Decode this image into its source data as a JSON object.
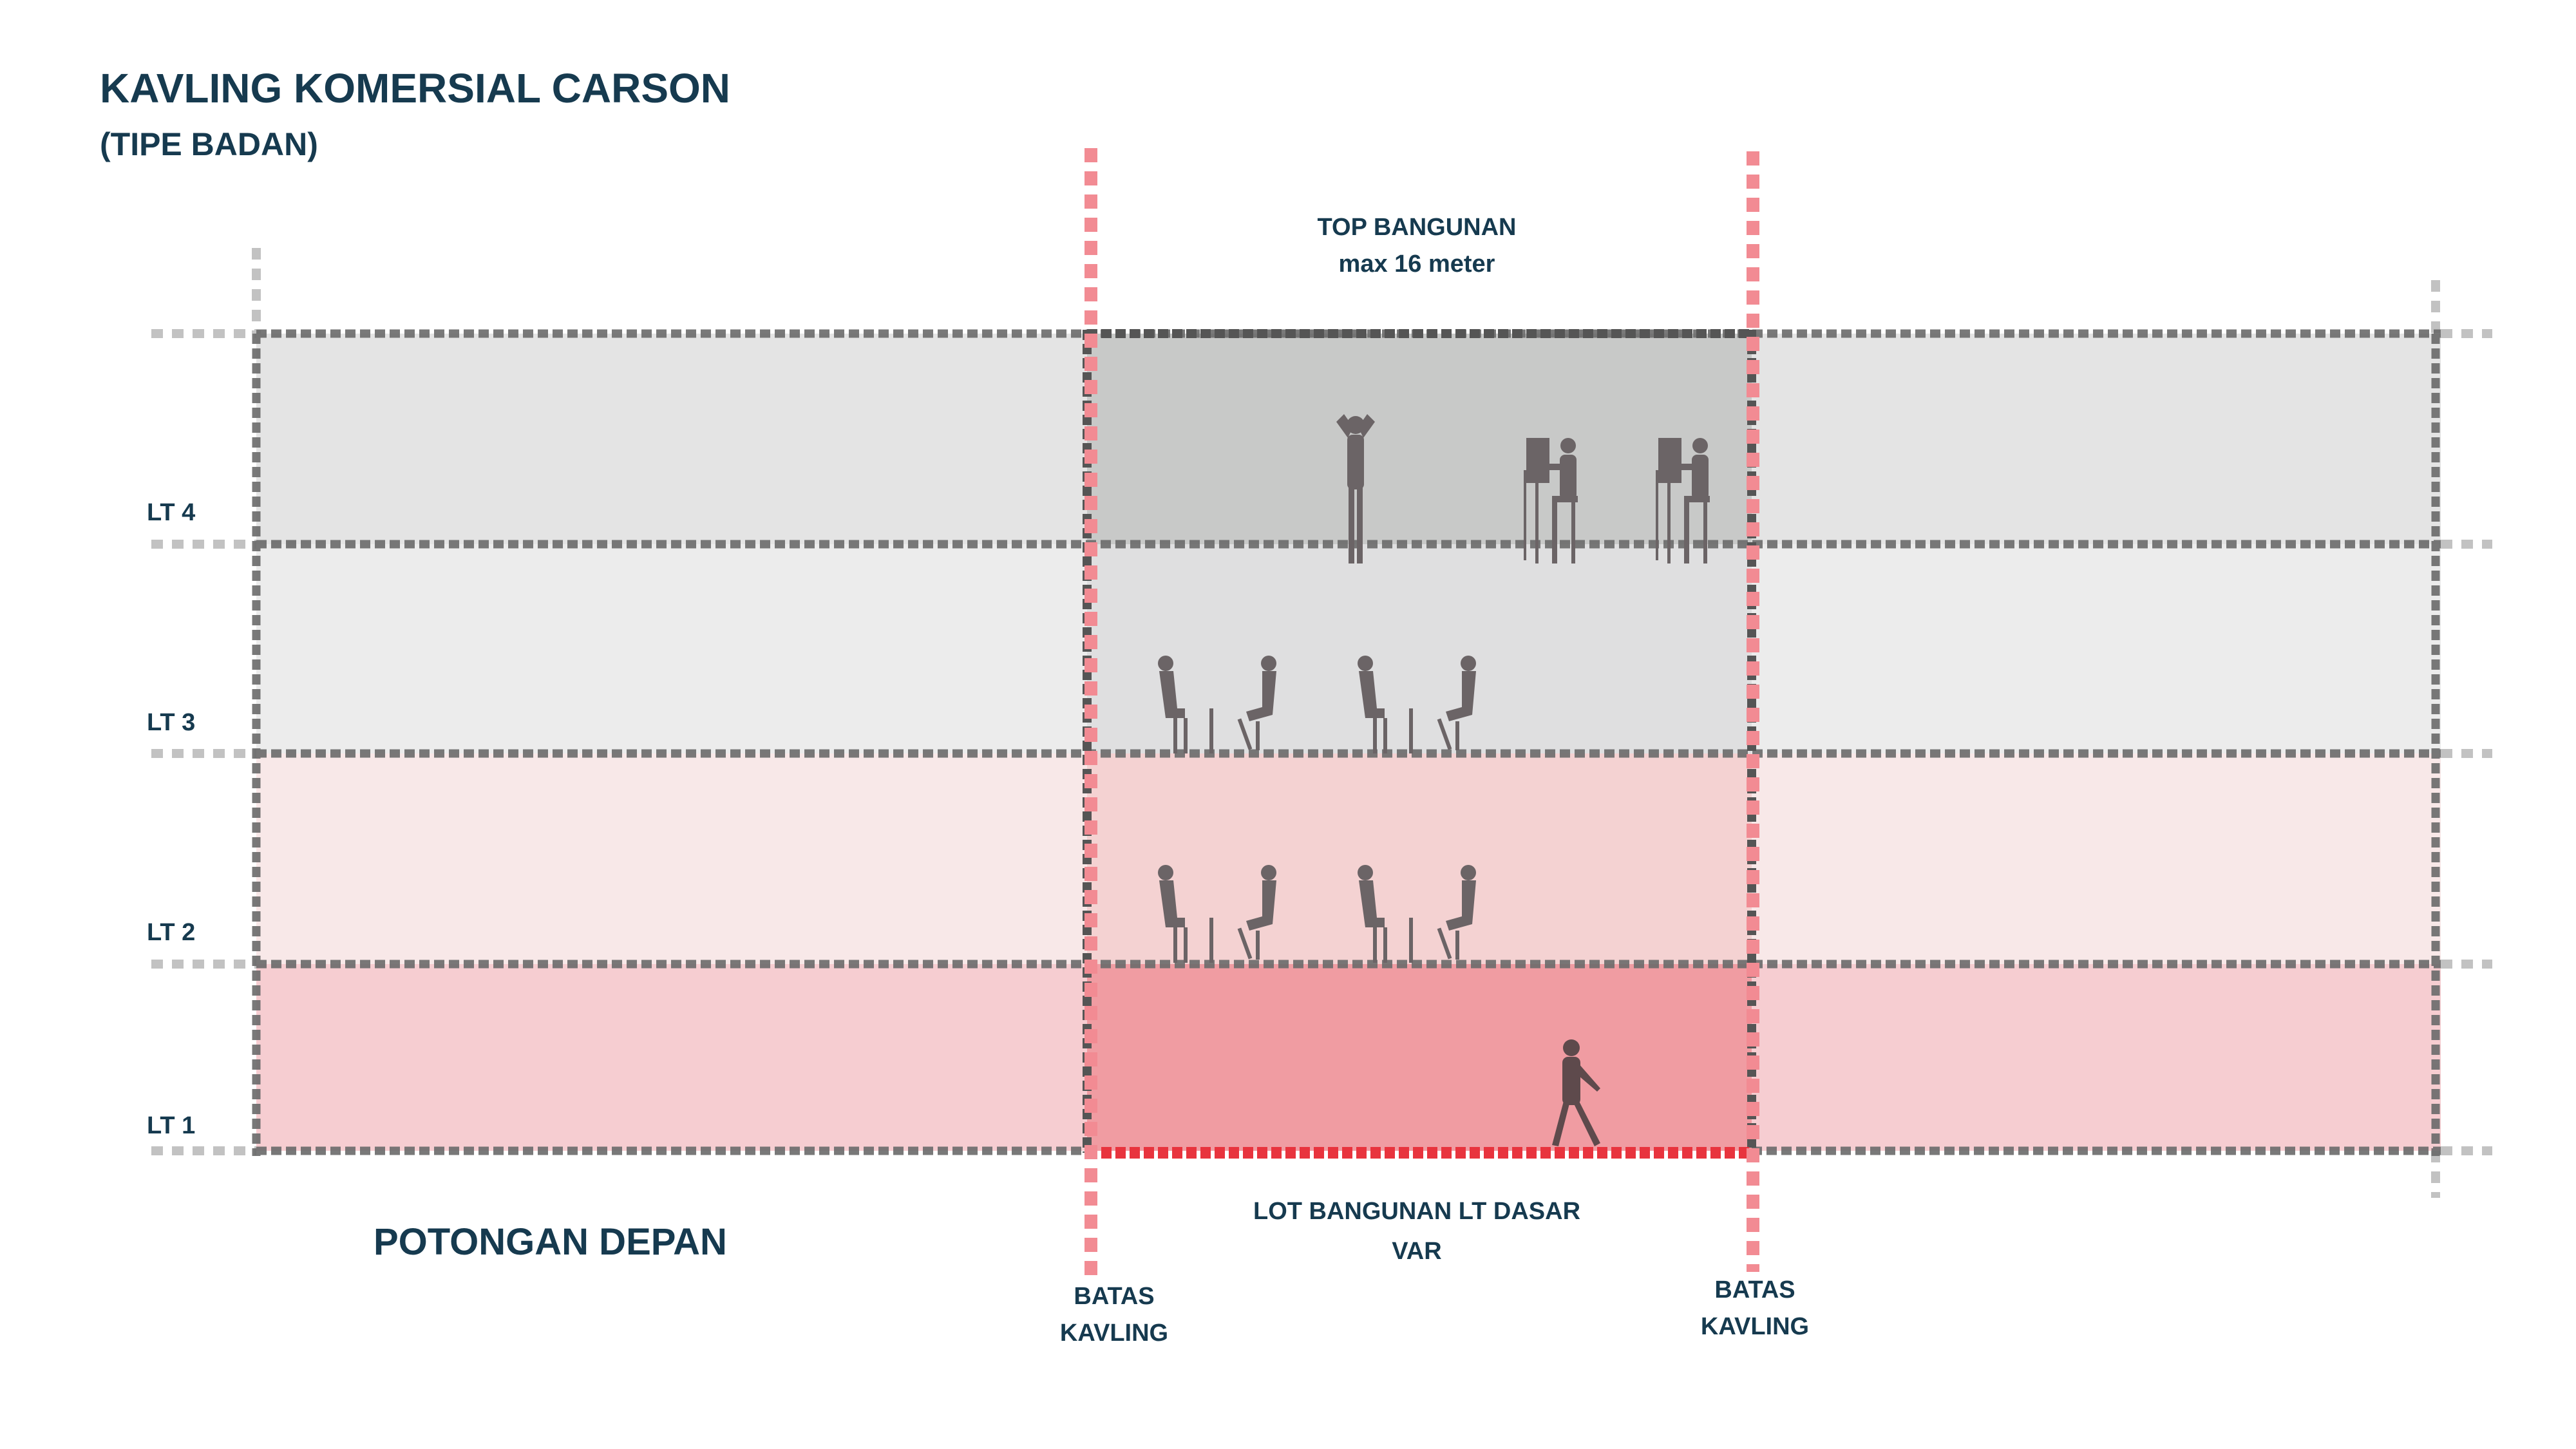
{
  "header": {
    "title": "KAVLING KOMERSIAL CARSON",
    "subtitle": "(TIPE BADAN)"
  },
  "section_label": "POTONGAN DEPAN",
  "annotations": {
    "top_line1": "TOP BANGUNAN",
    "top_line2": "max 16 meter",
    "lot_line1": "LOT BANGUNAN LT DASAR",
    "lot_line2": "VAR",
    "left_boundary_line1": "BATAS",
    "left_boundary_line2": "KAVLING",
    "right_boundary_line1": "BATAS",
    "right_boundary_line2": "KAVLING"
  },
  "floors": [
    {
      "label": "LT 4",
      "side_color": "#e4e4e4",
      "center_color": "#c8c9c8"
    },
    {
      "label": "LT 3",
      "side_color": "#ececec",
      "center_color": "#dfdfe0"
    },
    {
      "label": "LT 2",
      "side_color": "#f8e8e8",
      "center_color": "#f4d2d2"
    },
    {
      "label": "LT 1",
      "side_color": "#f6cdd1",
      "center_color": "#f09ca2"
    }
  ],
  "colors": {
    "text": "#163a4f",
    "boundary_line": "#f28b93",
    "ground_line": "#e8343e",
    "floor_line": "#6a6a6a",
    "guide_dots": "#c2c2c2",
    "figure": "#6b6466"
  }
}
